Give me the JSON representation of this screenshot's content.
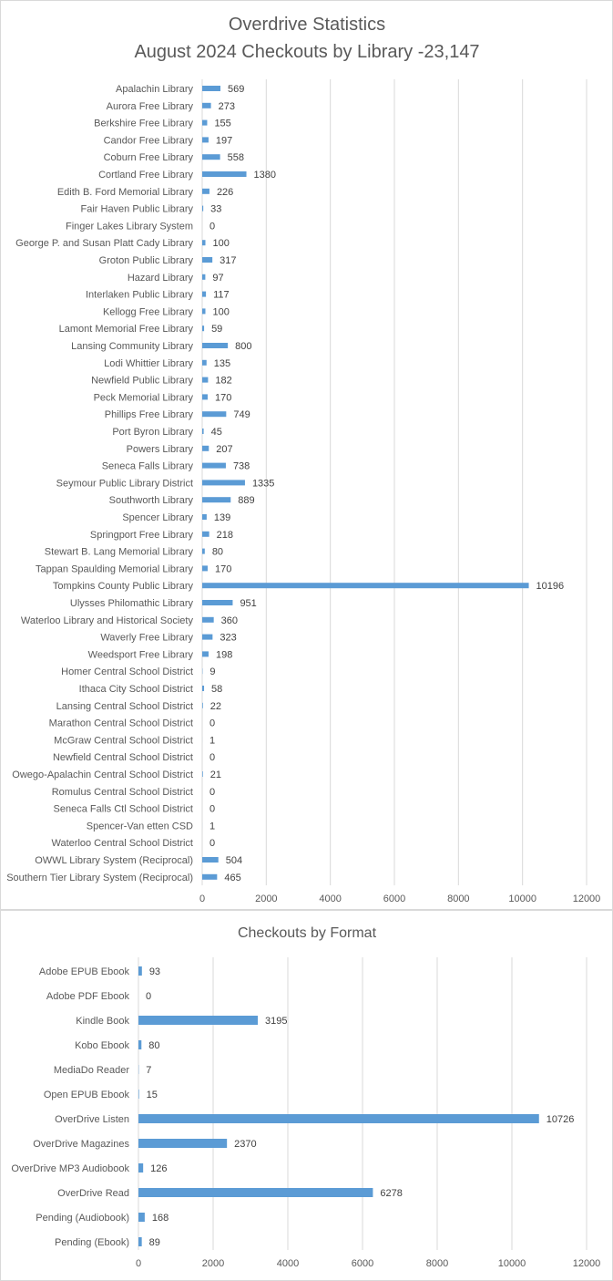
{
  "chart_data": [
    {
      "type": "bar",
      "orientation": "horizontal",
      "title": "Overdrive Statistics",
      "subtitle": "August 2024 Checkouts by Library -23,147",
      "color": "#5b9bd5",
      "xlim": [
        0,
        12000
      ],
      "xticks": [
        "0",
        "2000",
        "4000",
        "6000",
        "8000",
        "10000",
        "12000"
      ],
      "grid": true,
      "categories": [
        "Apalachin Library",
        "Aurora Free Library",
        "Berkshire Free Library",
        "Candor Free Library",
        "Coburn Free Library",
        "Cortland Free Library",
        "Edith B. Ford Memorial Library",
        "Fair Haven Public Library",
        "Finger Lakes Library System",
        "George P. and Susan Platt Cady Library",
        "Groton Public Library",
        "Hazard Library",
        "Interlaken Public Library",
        "Kellogg Free Library",
        "Lamont Memorial Free Library",
        "Lansing Community Library",
        "Lodi Whittier Library",
        "Newfield Public Library",
        "Peck Memorial Library",
        "Phillips Free Library",
        "Port Byron Library",
        "Powers Library",
        "Seneca Falls Library",
        "Seymour Public Library District",
        "Southworth Library",
        "Spencer Library",
        "Springport Free Library",
        "Stewart B. Lang Memorial Library",
        "Tappan Spaulding Memorial Library",
        "Tompkins County Public Library",
        "Ulysses Philomathic Library",
        "Waterloo Library and Historical Society",
        "Waverly Free Library",
        "Weedsport Free Library",
        "Homer Central School District",
        "Ithaca City School District",
        "Lansing Central School District",
        "Marathon Central School District",
        "McGraw Central School District",
        "Newfield Central School District",
        "Owego-Apalachin Central School District",
        "Romulus Central School District",
        "Seneca Falls Ctl School District",
        "Spencer-Van etten CSD",
        "Waterloo Central School District",
        "OWWL Library System (Reciprocal)",
        "Southern Tier Library System (Reciprocal)"
      ],
      "values": [
        569,
        273,
        155,
        197,
        558,
        1380,
        226,
        33,
        0,
        100,
        317,
        97,
        117,
        100,
        59,
        800,
        135,
        182,
        170,
        749,
        45,
        207,
        738,
        1335,
        889,
        139,
        218,
        80,
        170,
        10196,
        951,
        360,
        323,
        198,
        9,
        58,
        22,
        0,
        1,
        0,
        21,
        0,
        0,
        1,
        0,
        504,
        465
      ]
    },
    {
      "type": "bar",
      "orientation": "horizontal",
      "title": "Checkouts by Format",
      "color": "#5b9bd5",
      "xlim": [
        0,
        12000
      ],
      "xticks": [
        "0",
        "2000",
        "4000",
        "6000",
        "8000",
        "10000",
        "12000"
      ],
      "grid": true,
      "categories": [
        "Adobe EPUB Ebook",
        "Adobe PDF Ebook",
        "Kindle Book",
        "Kobo Ebook",
        "MediaDo Reader",
        "Open EPUB Ebook",
        "OverDrive Listen",
        "OverDrive Magazines",
        "OverDrive MP3 Audiobook",
        "OverDrive Read",
        "Pending (Audiobook)",
        "Pending (Ebook)"
      ],
      "values": [
        93,
        0,
        3195,
        80,
        7,
        15,
        10726,
        2370,
        126,
        6278,
        168,
        89
      ]
    }
  ]
}
